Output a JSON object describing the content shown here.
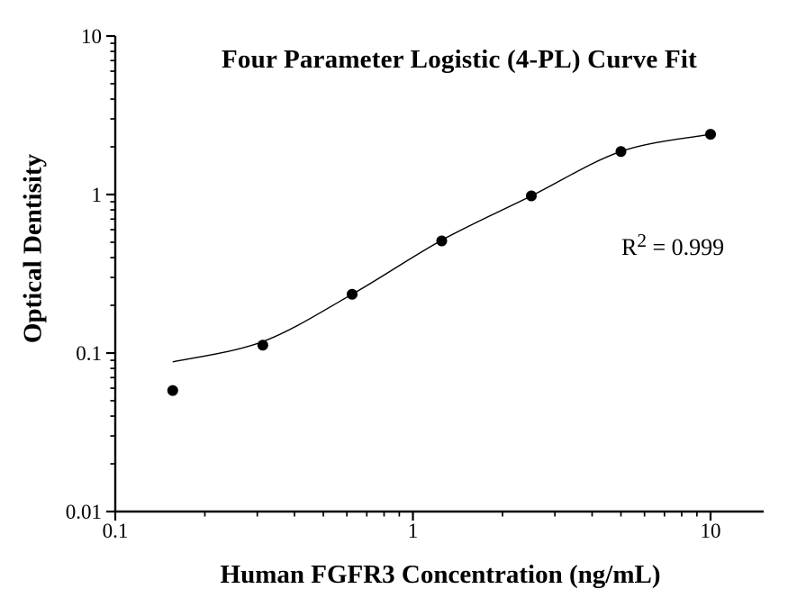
{
  "chart": {
    "title": "Four Parameter Logistic (4-PL) Curve Fit",
    "y_axis_label": "Optical Dentisity",
    "x_axis_label": "Human FGFR3 Concentration (ng/mL)",
    "annotation": {
      "r_base": "R",
      "r_sup": "2",
      "r_rest": "= 0.999"
    }
  },
  "chart_data": {
    "type": "scatter",
    "title": "Four Parameter Logistic (4-PL) Curve Fit",
    "xlabel": "Human FGFR3 Concentration (ng/mL)",
    "ylabel": "Optical Dentisity",
    "x_scale": "log",
    "y_scale": "log",
    "xlim": [
      0.1,
      15
    ],
    "ylim": [
      0.01,
      10
    ],
    "grid": false,
    "legend": false,
    "x_tick_values": [
      0.1,
      1,
      10
    ],
    "x_tick_labels": [
      "0.1",
      "1",
      "10"
    ],
    "y_tick_values": [
      0.01,
      0.1,
      1,
      10
    ],
    "y_tick_labels": [
      "0.01",
      "0.1",
      "1",
      "10"
    ],
    "points": [
      {
        "x": 0.156,
        "y": 0.058
      },
      {
        "x": 0.313,
        "y": 0.112
      },
      {
        "x": 0.625,
        "y": 0.235
      },
      {
        "x": 1.25,
        "y": 0.51
      },
      {
        "x": 2.5,
        "y": 0.98
      },
      {
        "x": 5,
        "y": 1.87
      },
      {
        "x": 10,
        "y": 2.4
      }
    ],
    "fit_curve_points": [
      {
        "x": 0.156,
        "y": 0.088
      },
      {
        "x": 0.313,
        "y": 0.118
      },
      {
        "x": 0.625,
        "y": 0.235
      },
      {
        "x": 1.25,
        "y": 0.515
      },
      {
        "x": 2.5,
        "y": 0.98
      },
      {
        "x": 5,
        "y": 1.87
      },
      {
        "x": 10,
        "y": 2.4
      }
    ],
    "r_squared": 0.999,
    "colors": {
      "axis": "#000000",
      "curve": "#000000",
      "marker": "#000000",
      "text": "#000000",
      "background": "#ffffff"
    }
  }
}
